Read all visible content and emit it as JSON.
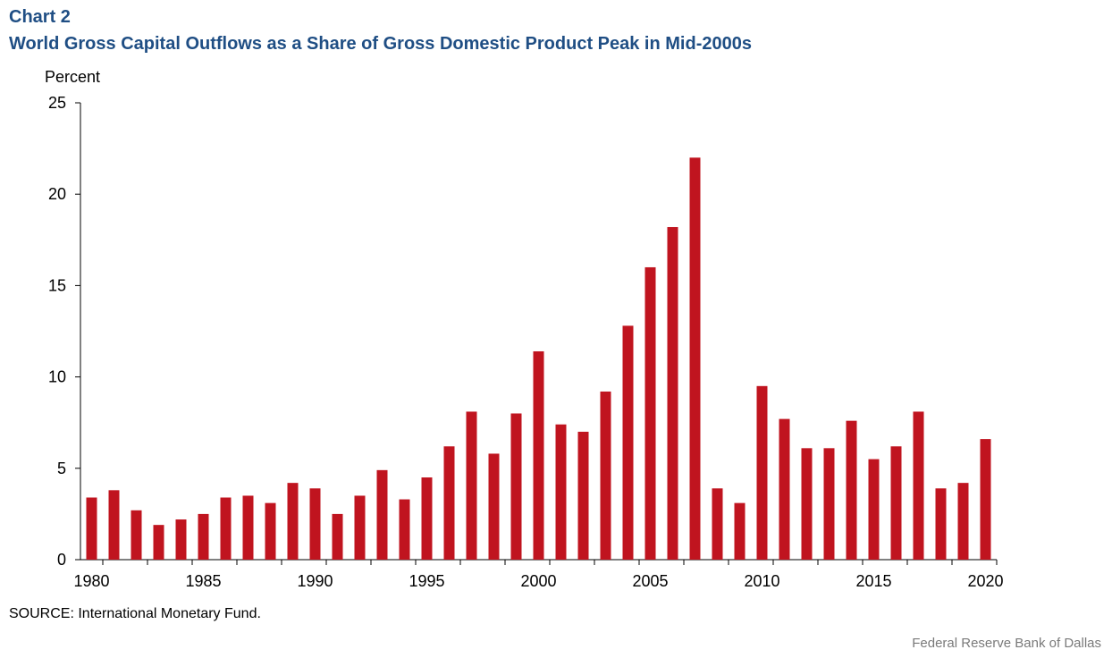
{
  "header": {
    "label": "Chart 2",
    "title": "World Gross Capital Outflows as a Share of Gross Domestic Product Peak in Mid-2000s"
  },
  "footer": {
    "source": "SOURCE: International Monetary Fund.",
    "credit": "Federal Reserve Bank of Dallas"
  },
  "colors": {
    "bar": "#c0141f",
    "title": "#1f4e84"
  },
  "chart_data": {
    "type": "bar",
    "title": "World Gross Capital Outflows as a Share of Gross Domestic Product Peak in Mid-2000s",
    "xlabel": "",
    "ylabel": "Percent",
    "ylim": [
      0,
      25
    ],
    "yticks": [
      0,
      5,
      10,
      15,
      20,
      25
    ],
    "xtick_labels": [
      "1980",
      "1985",
      "1990",
      "1995",
      "2000",
      "2005",
      "2010",
      "2015",
      "2020"
    ],
    "grid": false,
    "categories": [
      1980,
      1981,
      1982,
      1983,
      1984,
      1985,
      1986,
      1987,
      1988,
      1989,
      1990,
      1991,
      1992,
      1993,
      1994,
      1995,
      1996,
      1997,
      1998,
      1999,
      2000,
      2001,
      2002,
      2003,
      2004,
      2005,
      2006,
      2007,
      2008,
      2009,
      2010,
      2011,
      2012,
      2013,
      2014,
      2015,
      2016,
      2017,
      2018,
      2019,
      2020
    ],
    "values": [
      3.4,
      3.8,
      2.7,
      1.9,
      2.2,
      2.5,
      3.4,
      3.5,
      3.1,
      4.2,
      3.9,
      2.5,
      3.5,
      4.9,
      3.3,
      4.5,
      6.2,
      8.1,
      5.8,
      8.0,
      11.4,
      7.4,
      7.0,
      9.2,
      12.8,
      16.0,
      18.2,
      22.0,
      3.9,
      3.1,
      9.5,
      7.7,
      6.1,
      6.1,
      7.6,
      5.5,
      6.2,
      8.1,
      3.9,
      4.2,
      6.6
    ]
  }
}
